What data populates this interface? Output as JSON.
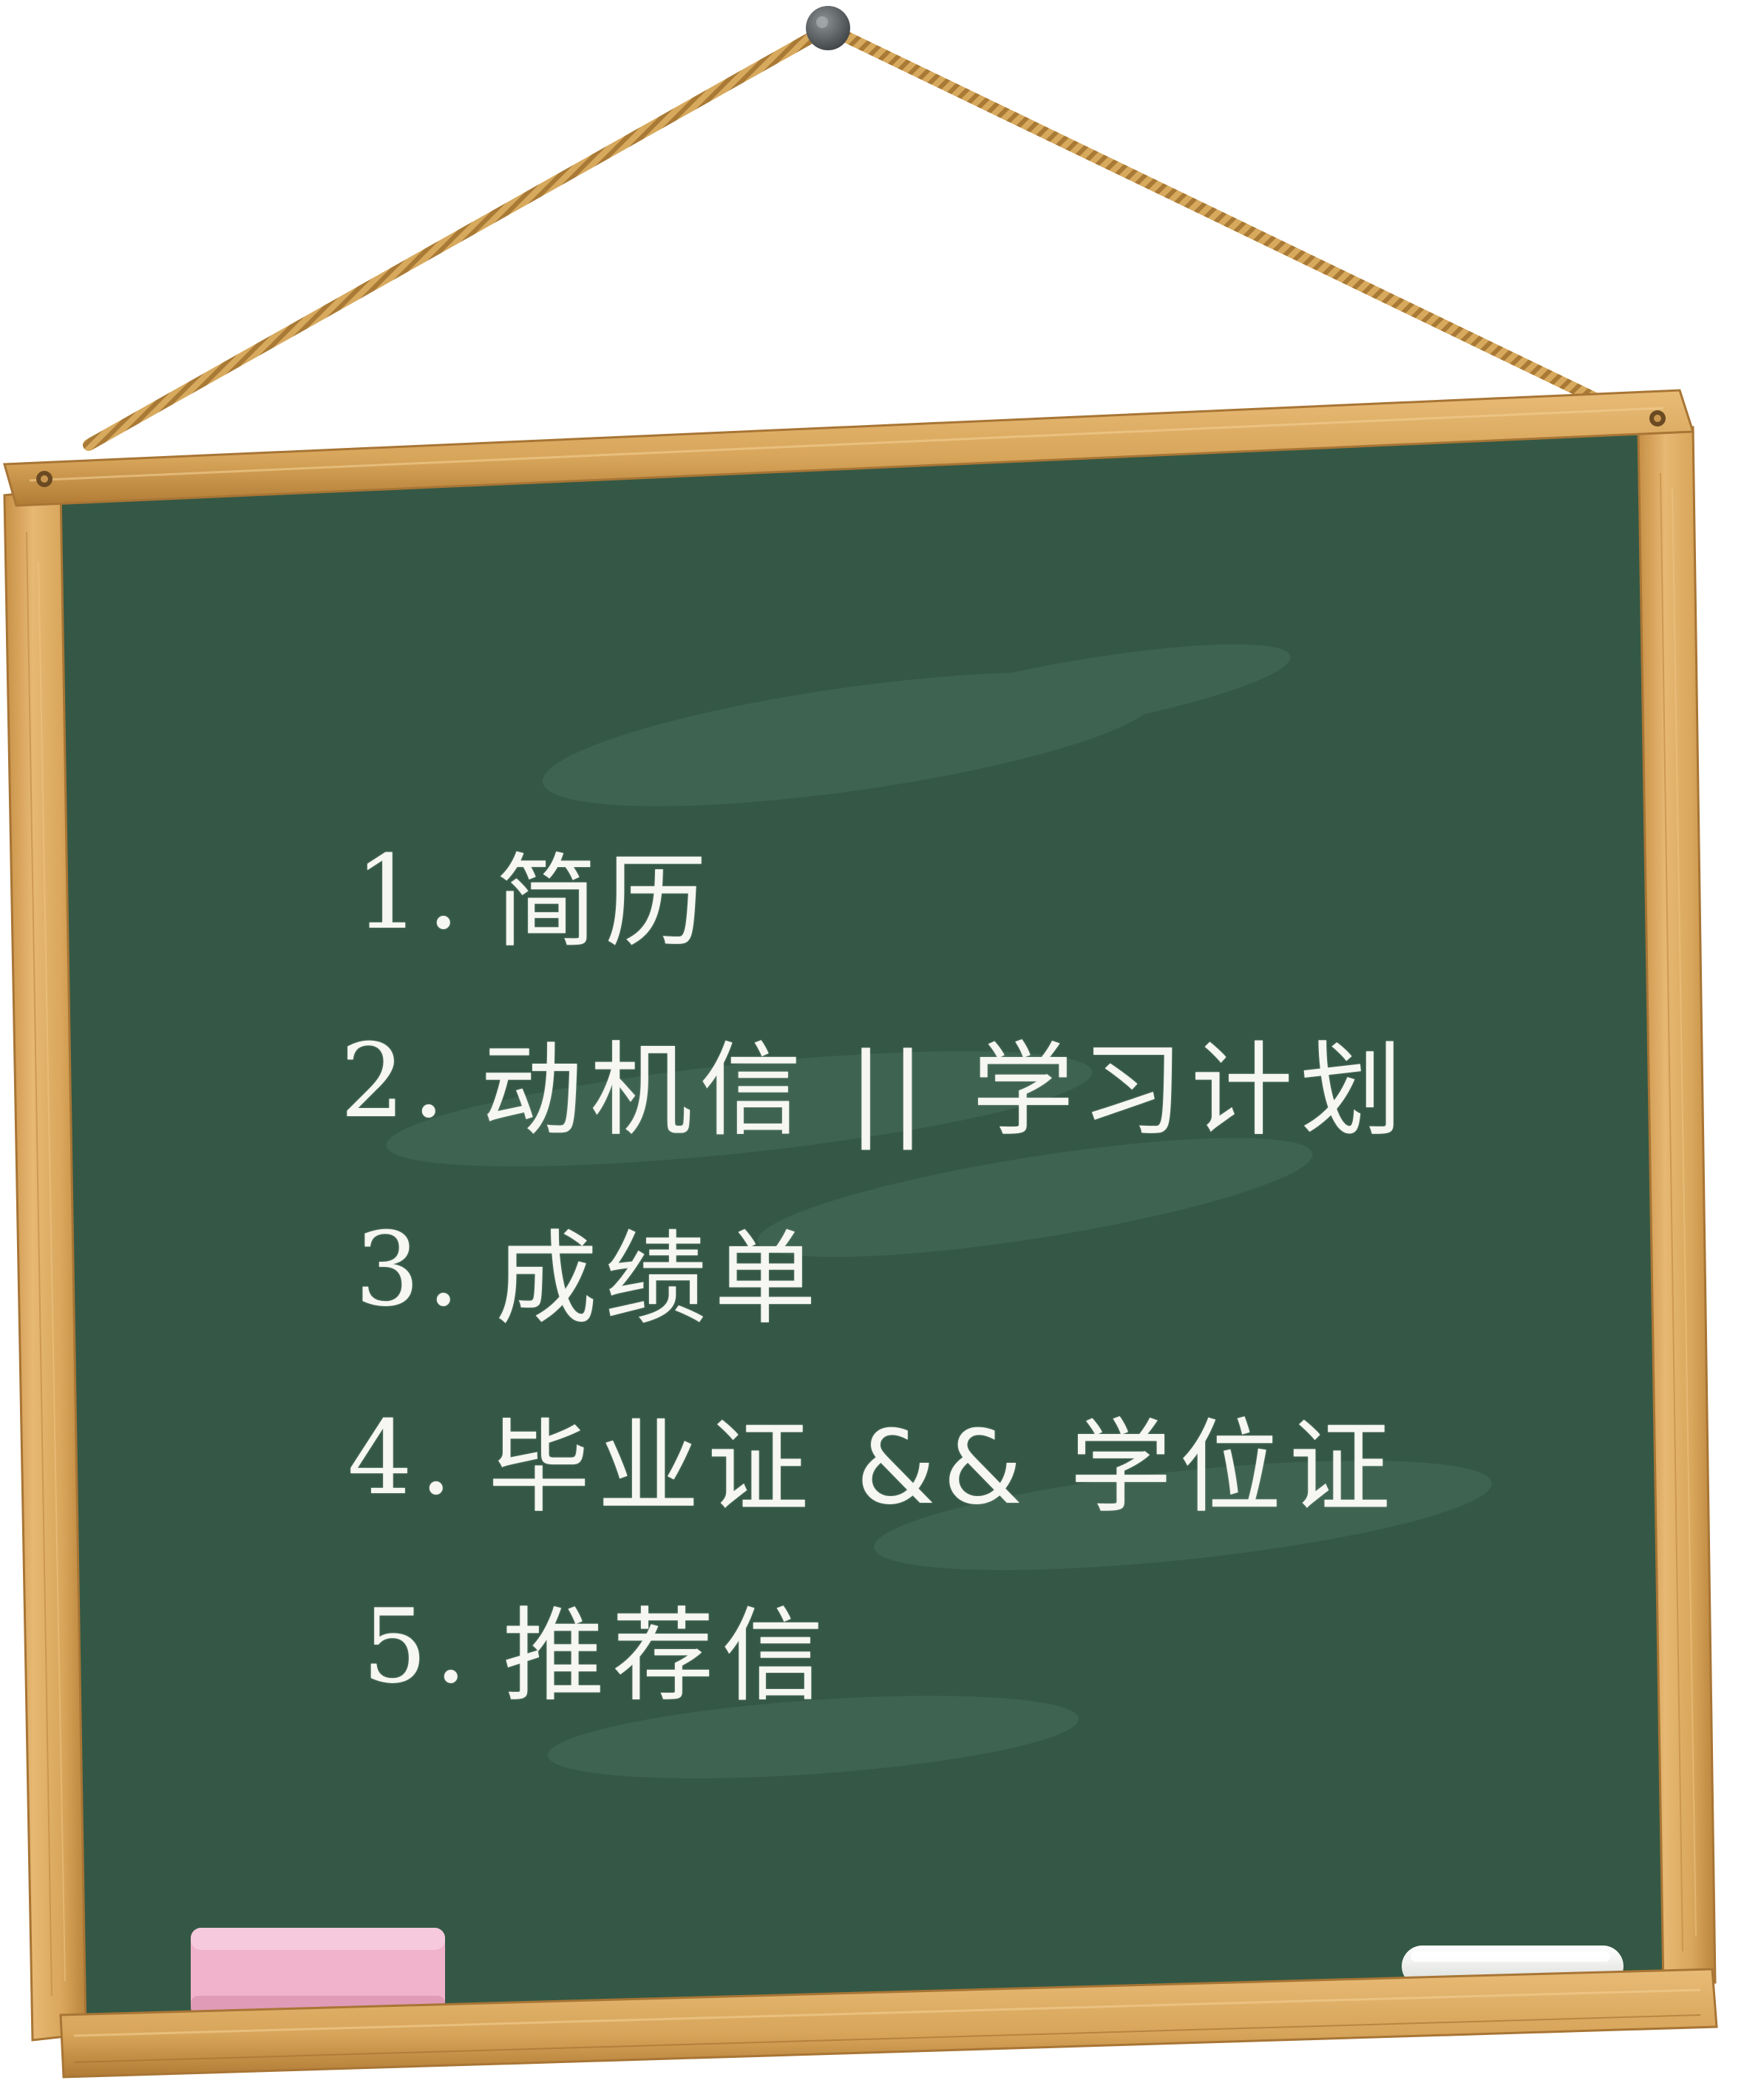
{
  "board": {
    "colors": {
      "board": "#345845",
      "frame": "#d9a75c",
      "frame_edge": "#b98237",
      "string": "#c99a4e",
      "pin": "#555a5c",
      "eraser": "#f1b3cc",
      "chalk": "#f4f4f0"
    },
    "items": [
      {
        "num": "1.",
        "text": "简历"
      },
      {
        "num": "2.",
        "text": "动机信 || 学习计划"
      },
      {
        "num": "3.",
        "text": "成绩单"
      },
      {
        "num": "4.",
        "text": "毕业证 && 学位证"
      },
      {
        "num": "5.",
        "text": "推荐信"
      }
    ]
  }
}
